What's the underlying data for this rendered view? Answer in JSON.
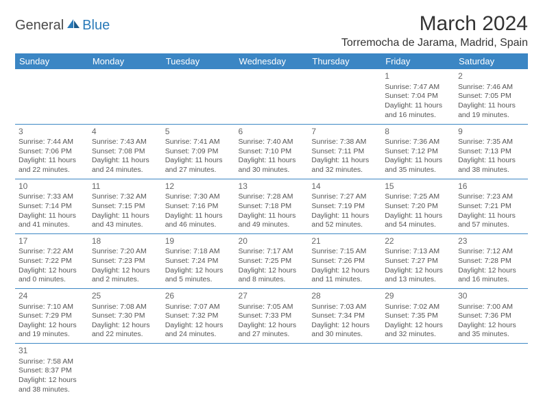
{
  "logo": {
    "general": "General",
    "blue": "Blue"
  },
  "title": "March 2024",
  "location": "Torremocha de Jarama, Madrid, Spain",
  "colors": {
    "header_bg": "#3b86c4",
    "header_text": "#ffffff",
    "row_border": "#3b86c4",
    "daynum_color": "#666666",
    "body_text": "#555555",
    "logo_blue": "#2a7ab8",
    "logo_gray": "#4a4a4a",
    "page_bg": "#ffffff"
  },
  "typography": {
    "title_fontsize_pt": 22,
    "location_fontsize_pt": 12,
    "dayheader_fontsize_pt": 10,
    "cell_fontsize_pt": 8
  },
  "day_headers": [
    "Sunday",
    "Monday",
    "Tuesday",
    "Wednesday",
    "Thursday",
    "Friday",
    "Saturday"
  ],
  "weeks": [
    [
      null,
      null,
      null,
      null,
      null,
      {
        "d": "1",
        "sr": "Sunrise: 7:47 AM",
        "ss": "Sunset: 7:04 PM",
        "dl1": "Daylight: 11 hours",
        "dl2": "and 16 minutes."
      },
      {
        "d": "2",
        "sr": "Sunrise: 7:46 AM",
        "ss": "Sunset: 7:05 PM",
        "dl1": "Daylight: 11 hours",
        "dl2": "and 19 minutes."
      }
    ],
    [
      {
        "d": "3",
        "sr": "Sunrise: 7:44 AM",
        "ss": "Sunset: 7:06 PM",
        "dl1": "Daylight: 11 hours",
        "dl2": "and 22 minutes."
      },
      {
        "d": "4",
        "sr": "Sunrise: 7:43 AM",
        "ss": "Sunset: 7:08 PM",
        "dl1": "Daylight: 11 hours",
        "dl2": "and 24 minutes."
      },
      {
        "d": "5",
        "sr": "Sunrise: 7:41 AM",
        "ss": "Sunset: 7:09 PM",
        "dl1": "Daylight: 11 hours",
        "dl2": "and 27 minutes."
      },
      {
        "d": "6",
        "sr": "Sunrise: 7:40 AM",
        "ss": "Sunset: 7:10 PM",
        "dl1": "Daylight: 11 hours",
        "dl2": "and 30 minutes."
      },
      {
        "d": "7",
        "sr": "Sunrise: 7:38 AM",
        "ss": "Sunset: 7:11 PM",
        "dl1": "Daylight: 11 hours",
        "dl2": "and 32 minutes."
      },
      {
        "d": "8",
        "sr": "Sunrise: 7:36 AM",
        "ss": "Sunset: 7:12 PM",
        "dl1": "Daylight: 11 hours",
        "dl2": "and 35 minutes."
      },
      {
        "d": "9",
        "sr": "Sunrise: 7:35 AM",
        "ss": "Sunset: 7:13 PM",
        "dl1": "Daylight: 11 hours",
        "dl2": "and 38 minutes."
      }
    ],
    [
      {
        "d": "10",
        "sr": "Sunrise: 7:33 AM",
        "ss": "Sunset: 7:14 PM",
        "dl1": "Daylight: 11 hours",
        "dl2": "and 41 minutes."
      },
      {
        "d": "11",
        "sr": "Sunrise: 7:32 AM",
        "ss": "Sunset: 7:15 PM",
        "dl1": "Daylight: 11 hours",
        "dl2": "and 43 minutes."
      },
      {
        "d": "12",
        "sr": "Sunrise: 7:30 AM",
        "ss": "Sunset: 7:16 PM",
        "dl1": "Daylight: 11 hours",
        "dl2": "and 46 minutes."
      },
      {
        "d": "13",
        "sr": "Sunrise: 7:28 AM",
        "ss": "Sunset: 7:18 PM",
        "dl1": "Daylight: 11 hours",
        "dl2": "and 49 minutes."
      },
      {
        "d": "14",
        "sr": "Sunrise: 7:27 AM",
        "ss": "Sunset: 7:19 PM",
        "dl1": "Daylight: 11 hours",
        "dl2": "and 52 minutes."
      },
      {
        "d": "15",
        "sr": "Sunrise: 7:25 AM",
        "ss": "Sunset: 7:20 PM",
        "dl1": "Daylight: 11 hours",
        "dl2": "and 54 minutes."
      },
      {
        "d": "16",
        "sr": "Sunrise: 7:23 AM",
        "ss": "Sunset: 7:21 PM",
        "dl1": "Daylight: 11 hours",
        "dl2": "and 57 minutes."
      }
    ],
    [
      {
        "d": "17",
        "sr": "Sunrise: 7:22 AM",
        "ss": "Sunset: 7:22 PM",
        "dl1": "Daylight: 12 hours",
        "dl2": "and 0 minutes."
      },
      {
        "d": "18",
        "sr": "Sunrise: 7:20 AM",
        "ss": "Sunset: 7:23 PM",
        "dl1": "Daylight: 12 hours",
        "dl2": "and 2 minutes."
      },
      {
        "d": "19",
        "sr": "Sunrise: 7:18 AM",
        "ss": "Sunset: 7:24 PM",
        "dl1": "Daylight: 12 hours",
        "dl2": "and 5 minutes."
      },
      {
        "d": "20",
        "sr": "Sunrise: 7:17 AM",
        "ss": "Sunset: 7:25 PM",
        "dl1": "Daylight: 12 hours",
        "dl2": "and 8 minutes."
      },
      {
        "d": "21",
        "sr": "Sunrise: 7:15 AM",
        "ss": "Sunset: 7:26 PM",
        "dl1": "Daylight: 12 hours",
        "dl2": "and 11 minutes."
      },
      {
        "d": "22",
        "sr": "Sunrise: 7:13 AM",
        "ss": "Sunset: 7:27 PM",
        "dl1": "Daylight: 12 hours",
        "dl2": "and 13 minutes."
      },
      {
        "d": "23",
        "sr": "Sunrise: 7:12 AM",
        "ss": "Sunset: 7:28 PM",
        "dl1": "Daylight: 12 hours",
        "dl2": "and 16 minutes."
      }
    ],
    [
      {
        "d": "24",
        "sr": "Sunrise: 7:10 AM",
        "ss": "Sunset: 7:29 PM",
        "dl1": "Daylight: 12 hours",
        "dl2": "and 19 minutes."
      },
      {
        "d": "25",
        "sr": "Sunrise: 7:08 AM",
        "ss": "Sunset: 7:30 PM",
        "dl1": "Daylight: 12 hours",
        "dl2": "and 22 minutes."
      },
      {
        "d": "26",
        "sr": "Sunrise: 7:07 AM",
        "ss": "Sunset: 7:32 PM",
        "dl1": "Daylight: 12 hours",
        "dl2": "and 24 minutes."
      },
      {
        "d": "27",
        "sr": "Sunrise: 7:05 AM",
        "ss": "Sunset: 7:33 PM",
        "dl1": "Daylight: 12 hours",
        "dl2": "and 27 minutes."
      },
      {
        "d": "28",
        "sr": "Sunrise: 7:03 AM",
        "ss": "Sunset: 7:34 PM",
        "dl1": "Daylight: 12 hours",
        "dl2": "and 30 minutes."
      },
      {
        "d": "29",
        "sr": "Sunrise: 7:02 AM",
        "ss": "Sunset: 7:35 PM",
        "dl1": "Daylight: 12 hours",
        "dl2": "and 32 minutes."
      },
      {
        "d": "30",
        "sr": "Sunrise: 7:00 AM",
        "ss": "Sunset: 7:36 PM",
        "dl1": "Daylight: 12 hours",
        "dl2": "and 35 minutes."
      }
    ],
    [
      {
        "d": "31",
        "sr": "Sunrise: 7:58 AM",
        "ss": "Sunset: 8:37 PM",
        "dl1": "Daylight: 12 hours",
        "dl2": "and 38 minutes."
      },
      null,
      null,
      null,
      null,
      null,
      null
    ]
  ]
}
